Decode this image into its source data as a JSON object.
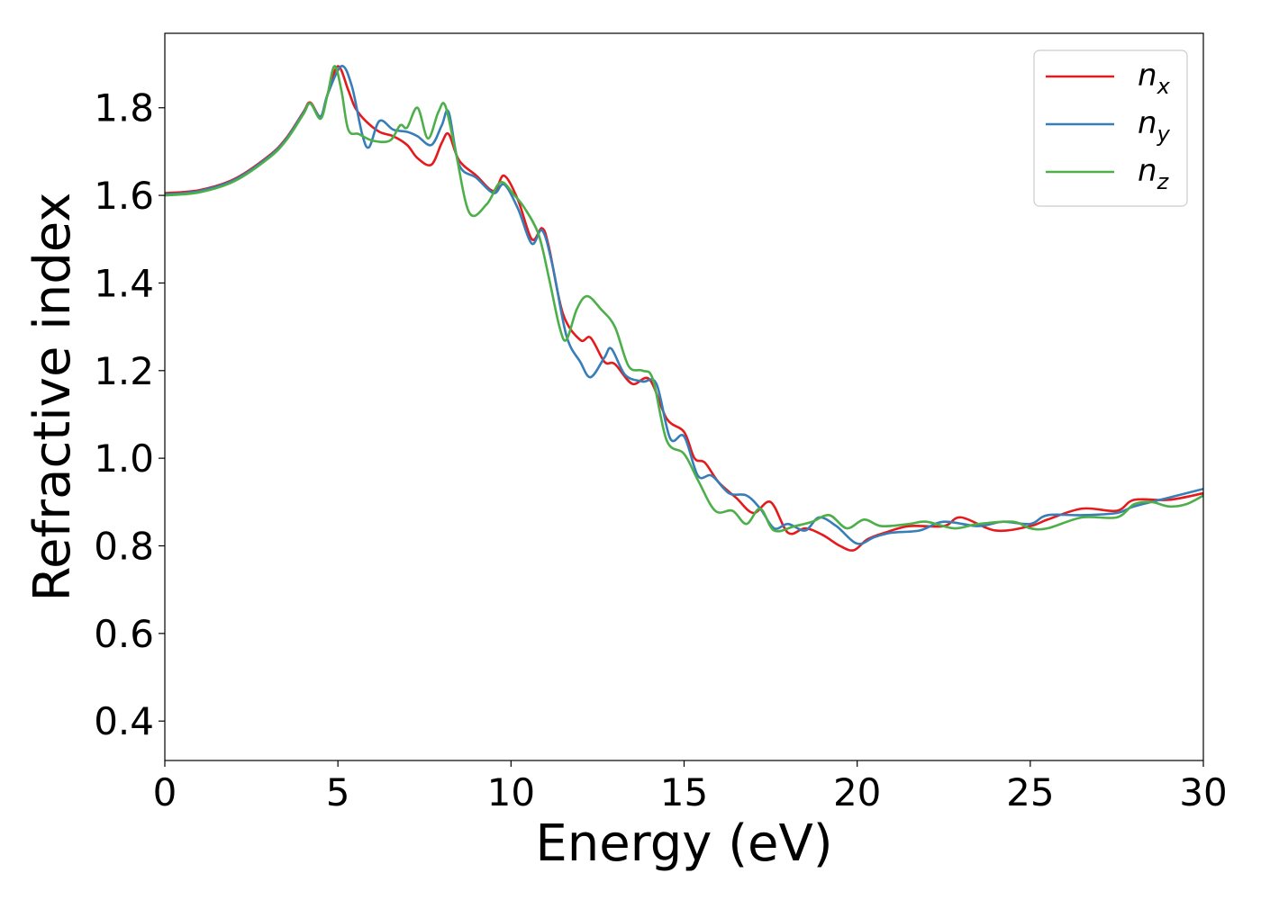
{
  "chart_data": {
    "type": "line",
    "title": "",
    "xlabel": "Energy (eV)",
    "ylabel": "Refractive index",
    "xlim": [
      0,
      30
    ],
    "ylim": [
      0.31,
      1.97
    ],
    "xticks": [
      0,
      5,
      10,
      15,
      20,
      25,
      30
    ],
    "xtick_labels": [
      "0",
      "5",
      "10",
      "15",
      "20",
      "25",
      "30"
    ],
    "yticks": [
      0.4,
      0.6,
      0.8,
      1.0,
      1.2,
      1.4,
      1.6,
      1.8
    ],
    "ytick_labels": [
      "0.4",
      "0.6",
      "0.8",
      "1.0",
      "1.2",
      "1.4",
      "1.6",
      "1.8"
    ],
    "grid": false,
    "legend_position": "top-right",
    "series": [
      {
        "name": "n_x",
        "label_main": "n",
        "label_sub": "x",
        "color": "#e41a1c",
        "points": [
          [
            0,
            1.605
          ],
          [
            1,
            1.612
          ],
          [
            2,
            1.637
          ],
          [
            3,
            1.69
          ],
          [
            3.5,
            1.73
          ],
          [
            4,
            1.79
          ],
          [
            4.2,
            1.812
          ],
          [
            4.5,
            1.78
          ],
          [
            4.7,
            1.83
          ],
          [
            5.0,
            1.895
          ],
          [
            5.3,
            1.84
          ],
          [
            5.5,
            1.8
          ],
          [
            5.8,
            1.77
          ],
          [
            6.2,
            1.745
          ],
          [
            6.6,
            1.735
          ],
          [
            7.0,
            1.715
          ],
          [
            7.3,
            1.685
          ],
          [
            7.7,
            1.67
          ],
          [
            8.0,
            1.72
          ],
          [
            8.2,
            1.74
          ],
          [
            8.5,
            1.68
          ],
          [
            9.0,
            1.645
          ],
          [
            9.5,
            1.61
          ],
          [
            9.8,
            1.645
          ],
          [
            10.2,
            1.59
          ],
          [
            10.6,
            1.5
          ],
          [
            10.9,
            1.525
          ],
          [
            11.1,
            1.48
          ],
          [
            11.5,
            1.33
          ],
          [
            12.0,
            1.27
          ],
          [
            12.3,
            1.275
          ],
          [
            12.7,
            1.22
          ],
          [
            13.0,
            1.215
          ],
          [
            13.5,
            1.17
          ],
          [
            14.0,
            1.18
          ],
          [
            14.5,
            1.09
          ],
          [
            15.0,
            1.06
          ],
          [
            15.3,
            1.0
          ],
          [
            15.6,
            0.99
          ],
          [
            16.0,
            0.945
          ],
          [
            16.5,
            0.91
          ],
          [
            17.0,
            0.875
          ],
          [
            17.5,
            0.9
          ],
          [
            18.0,
            0.83
          ],
          [
            18.5,
            0.84
          ],
          [
            19.0,
            0.825
          ],
          [
            19.5,
            0.8
          ],
          [
            19.9,
            0.79
          ],
          [
            20.3,
            0.815
          ],
          [
            20.8,
            0.83
          ],
          [
            21.5,
            0.845
          ],
          [
            22.5,
            0.845
          ],
          [
            23.0,
            0.865
          ],
          [
            24.0,
            0.835
          ],
          [
            25.0,
            0.845
          ],
          [
            25.5,
            0.86
          ],
          [
            26.5,
            0.885
          ],
          [
            27.5,
            0.88
          ],
          [
            28.0,
            0.905
          ],
          [
            29.0,
            0.905
          ],
          [
            30.0,
            0.92
          ]
        ]
      },
      {
        "name": "n_y",
        "label_main": "n",
        "label_sub": "y",
        "color": "#377eb8",
        "points": [
          [
            0,
            1.602
          ],
          [
            1,
            1.61
          ],
          [
            2,
            1.635
          ],
          [
            3,
            1.688
          ],
          [
            3.5,
            1.728
          ],
          [
            4,
            1.788
          ],
          [
            4.2,
            1.81
          ],
          [
            4.5,
            1.78
          ],
          [
            4.7,
            1.83
          ],
          [
            5.1,
            1.895
          ],
          [
            5.4,
            1.85
          ],
          [
            5.7,
            1.74
          ],
          [
            5.9,
            1.71
          ],
          [
            6.2,
            1.77
          ],
          [
            6.6,
            1.75
          ],
          [
            7.0,
            1.745
          ],
          [
            7.3,
            1.735
          ],
          [
            7.7,
            1.715
          ],
          [
            8.0,
            1.76
          ],
          [
            8.2,
            1.79
          ],
          [
            8.5,
            1.67
          ],
          [
            9.0,
            1.64
          ],
          [
            9.5,
            1.605
          ],
          [
            9.8,
            1.625
          ],
          [
            10.2,
            1.57
          ],
          [
            10.6,
            1.49
          ],
          [
            10.9,
            1.52
          ],
          [
            11.2,
            1.44
          ],
          [
            11.6,
            1.28
          ],
          [
            12.0,
            1.22
          ],
          [
            12.3,
            1.185
          ],
          [
            12.7,
            1.23
          ],
          [
            12.9,
            1.25
          ],
          [
            13.3,
            1.19
          ],
          [
            13.8,
            1.175
          ],
          [
            14.2,
            1.17
          ],
          [
            14.6,
            1.045
          ],
          [
            15.0,
            1.05
          ],
          [
            15.4,
            0.96
          ],
          [
            15.8,
            0.96
          ],
          [
            16.3,
            0.92
          ],
          [
            16.8,
            0.915
          ],
          [
            17.2,
            0.885
          ],
          [
            17.6,
            0.84
          ],
          [
            18.0,
            0.85
          ],
          [
            18.5,
            0.835
          ],
          [
            18.9,
            0.865
          ],
          [
            19.4,
            0.845
          ],
          [
            20.0,
            0.805
          ],
          [
            20.5,
            0.82
          ],
          [
            21.0,
            0.83
          ],
          [
            21.8,
            0.835
          ],
          [
            22.5,
            0.855
          ],
          [
            23.5,
            0.845
          ],
          [
            24.2,
            0.855
          ],
          [
            25.0,
            0.85
          ],
          [
            25.5,
            0.87
          ],
          [
            26.5,
            0.87
          ],
          [
            27.5,
            0.875
          ],
          [
            28.0,
            0.89
          ],
          [
            29.0,
            0.91
          ],
          [
            30.0,
            0.93
          ]
        ]
      },
      {
        "name": "n_z",
        "label_main": "n",
        "label_sub": "z",
        "color": "#4daf4a",
        "points": [
          [
            0,
            1.6
          ],
          [
            1,
            1.607
          ],
          [
            2,
            1.632
          ],
          [
            3,
            1.685
          ],
          [
            3.5,
            1.725
          ],
          [
            4,
            1.785
          ],
          [
            4.2,
            1.81
          ],
          [
            4.5,
            1.775
          ],
          [
            4.7,
            1.83
          ],
          [
            4.9,
            1.895
          ],
          [
            5.1,
            1.84
          ],
          [
            5.3,
            1.75
          ],
          [
            5.6,
            1.74
          ],
          [
            6.0,
            1.725
          ],
          [
            6.5,
            1.725
          ],
          [
            6.8,
            1.76
          ],
          [
            7.0,
            1.755
          ],
          [
            7.3,
            1.8
          ],
          [
            7.6,
            1.73
          ],
          [
            7.9,
            1.79
          ],
          [
            8.1,
            1.805
          ],
          [
            8.4,
            1.7
          ],
          [
            8.8,
            1.56
          ],
          [
            9.3,
            1.58
          ],
          [
            9.7,
            1.63
          ],
          [
            10.1,
            1.6
          ],
          [
            10.4,
            1.57
          ],
          [
            10.8,
            1.51
          ],
          [
            11.1,
            1.41
          ],
          [
            11.4,
            1.3
          ],
          [
            11.6,
            1.27
          ],
          [
            11.9,
            1.34
          ],
          [
            12.2,
            1.37
          ],
          [
            12.6,
            1.34
          ],
          [
            13.0,
            1.3
          ],
          [
            13.4,
            1.21
          ],
          [
            13.8,
            1.2
          ],
          [
            14.1,
            1.18
          ],
          [
            14.5,
            1.04
          ],
          [
            15.0,
            1.01
          ],
          [
            15.4,
            0.95
          ],
          [
            15.9,
            0.88
          ],
          [
            16.4,
            0.88
          ],
          [
            16.8,
            0.85
          ],
          [
            17.2,
            0.885
          ],
          [
            17.6,
            0.835
          ],
          [
            18.2,
            0.845
          ],
          [
            18.7,
            0.855
          ],
          [
            19.2,
            0.87
          ],
          [
            19.7,
            0.84
          ],
          [
            20.2,
            0.86
          ],
          [
            20.7,
            0.845
          ],
          [
            21.5,
            0.85
          ],
          [
            22.0,
            0.855
          ],
          [
            22.8,
            0.84
          ],
          [
            23.5,
            0.85
          ],
          [
            24.5,
            0.855
          ],
          [
            25.0,
            0.84
          ],
          [
            25.5,
            0.84
          ],
          [
            26.5,
            0.865
          ],
          [
            27.5,
            0.865
          ],
          [
            28.0,
            0.895
          ],
          [
            28.5,
            0.9
          ],
          [
            29.0,
            0.89
          ],
          [
            29.5,
            0.895
          ],
          [
            30.0,
            0.915
          ]
        ]
      }
    ]
  }
}
